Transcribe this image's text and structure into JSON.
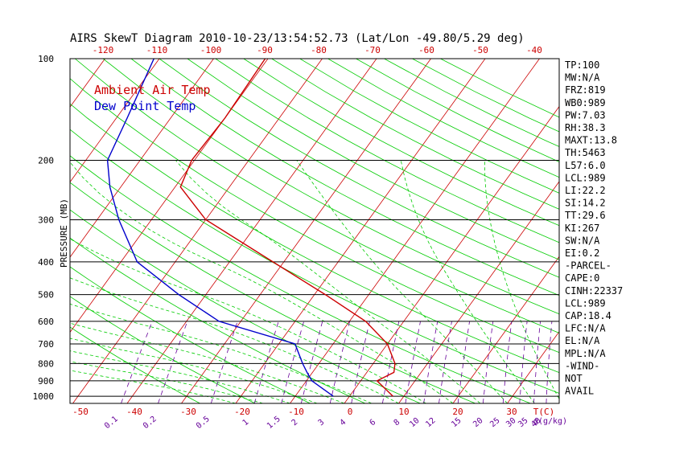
{
  "chart_data": {
    "type": "line",
    "title": "AIRS SkewT Diagram 2010-10-23/13:54:52.73 (Lat/Lon -49.80/5.29 deg)",
    "ylabel": "PRESSURE (MB)",
    "xlabel": "T(C)",
    "mixing_ratio_label": "g(g/kg)",
    "pressure_ticks": [
      100,
      200,
      300,
      400,
      500,
      600,
      700,
      800,
      900,
      1000
    ],
    "top_temp_ticks": [
      -120,
      -110,
      -100,
      -90,
      -80,
      -70,
      -60,
      -50,
      -40
    ],
    "bottom_temp_ticks": [
      -50,
      -40,
      -30,
      -20,
      -10,
      0,
      10,
      20,
      30
    ],
    "mixing_ratio_ticks": [
      "0.1",
      "0.2",
      "0.5",
      "1",
      "1.5",
      "2",
      "3",
      "4",
      "6",
      "8",
      "10",
      "12",
      "15",
      "20",
      "25",
      "30",
      "35",
      "40"
    ],
    "legend": [
      {
        "name": "Ambient Air Temp",
        "color": "#cc0000"
      },
      {
        "name": "Dew Point Temp",
        "color": "#0000cc"
      }
    ],
    "series": [
      {
        "name": "Ambient Air Temp",
        "points": [
          {
            "p": 100,
            "t": -60.5
          },
          {
            "p": 150,
            "t": -60
          },
          {
            "p": 200,
            "t": -60.5
          },
          {
            "p": 240,
            "t": -59
          },
          {
            "p": 300,
            "t": -50
          },
          {
            "p": 400,
            "t": -32
          },
          {
            "p": 500,
            "t": -18
          },
          {
            "p": 600,
            "t": -7
          },
          {
            "p": 700,
            "t": 0
          },
          {
            "p": 800,
            "t": 4
          },
          {
            "p": 850,
            "t": 5
          },
          {
            "p": 900,
            "t": 3
          },
          {
            "p": 1000,
            "t": 8
          }
        ]
      },
      {
        "name": "Dew Point Temp",
        "points": [
          {
            "p": 100,
            "t": -81
          },
          {
            "p": 150,
            "t": -78
          },
          {
            "p": 200,
            "t": -76
          },
          {
            "p": 240,
            "t": -72
          },
          {
            "p": 300,
            "t": -66
          },
          {
            "p": 400,
            "t": -57
          },
          {
            "p": 500,
            "t": -45
          },
          {
            "p": 600,
            "t": -34
          },
          {
            "p": 700,
            "t": -17
          },
          {
            "p": 800,
            "t": -13
          },
          {
            "p": 850,
            "t": -11
          },
          {
            "p": 900,
            "t": -9
          },
          {
            "p": 1000,
            "t": -3
          }
        ]
      }
    ]
  },
  "indices": [
    "TP:100",
    "MW:N/A",
    "FRZ:819",
    "WB0:989",
    "PW:7.03",
    "RH:38.3",
    "MAXT:13.8",
    "TH:5463",
    "L57:6.0",
    "LCL:989",
    "LI:22.2",
    "SI:14.2",
    "TT:29.6",
    "KI:267",
    "SW:N/A",
    "EI:0.2",
    "-PARCEL-",
    "CAPE:0",
    "CINH:22337",
    "LCL:989",
    "CAP:18.4",
    "LFC:N/A",
    "EL:N/A",
    "MPL:N/A",
    "-WIND-",
    "NOT",
    "AVAIL"
  ]
}
